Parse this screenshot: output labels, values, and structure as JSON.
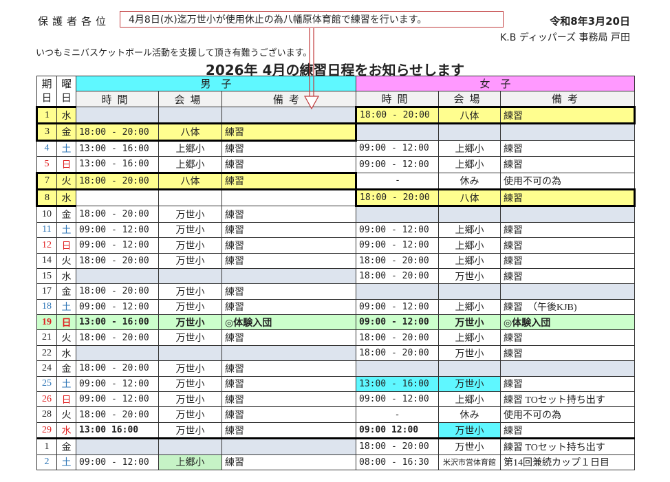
{
  "header": {
    "salutation": "保護者各位",
    "notice": "4月8日(水)迄万世小が使用休止の為八幡原体育館で練習を行います。",
    "date": "令和8年3月20日",
    "org": "K.B ディッパーズ 事務局 戸田",
    "greeting": "いつもミニバスケットボール活動を支援して頂き有難うございます。",
    "title": "2026年 4月の練習日程をお知らせします"
  },
  "table": {
    "col_day": "期日",
    "col_weekday": "曜日",
    "boys": "男　子",
    "girls": "女　子",
    "time": "時間",
    "venue": "会場",
    "note": "備考",
    "rows": [
      {
        "d": "1",
        "w": "水",
        "bt": "",
        "bv": "",
        "bn": "",
        "gt": "18:00 - 20:00",
        "gv": "八体",
        "gn": "練習",
        "style": "yel-girls"
      },
      {
        "d": "3",
        "w": "金",
        "bt": "18:00 - 20:00",
        "bv": "八体",
        "bn": "練習",
        "gt": "",
        "gv": "",
        "gn": "",
        "style": "yel-boys"
      },
      {
        "d": "4",
        "w": "土",
        "bt": "13:00 - 16:00",
        "bv": "上郷小",
        "bn": "練習",
        "gt": "09:00 - 12:00",
        "gv": "上郷小",
        "gn": "練習",
        "color": "blue"
      },
      {
        "d": "5",
        "w": "日",
        "bt": "13:00 - 16:00",
        "bv": "上郷小",
        "bn": "練習",
        "gt": "09:00 - 12:00",
        "gv": "上郷小",
        "gn": "練習",
        "color": "red"
      },
      {
        "d": "7",
        "w": "火",
        "bt": "18:00 - 20:00",
        "bv": "八体",
        "bn": "練習",
        "gt": "-",
        "gv": "休み",
        "gn": " 使用不可の為",
        "style": "yel-boys"
      },
      {
        "d": "8",
        "w": "水",
        "bt": "",
        "bv": "",
        "bn": "",
        "gt": "18:00 - 20:00",
        "gv": "八体",
        "gn": "練習",
        "style": "yel-girls",
        "nogray": true
      },
      {
        "d": "10",
        "w": "金",
        "bt": "18:00 - 20:00",
        "bv": "万世小",
        "bn": "練習",
        "gt": "",
        "gv": "",
        "gn": ""
      },
      {
        "d": "11",
        "w": "土",
        "bt": "09:00 - 12:00",
        "bv": "万世小",
        "bn": "練習",
        "gt": "09:00 - 12:00",
        "gv": "上郷小",
        "gn": "練習",
        "color": "blue"
      },
      {
        "d": "12",
        "w": "日",
        "bt": "09:00 - 12:00",
        "bv": "万世小",
        "bn": "練習",
        "gt": "09:00 - 12:00",
        "gv": "上郷小",
        "gn": "練習",
        "color": "red"
      },
      {
        "d": "14",
        "w": "火",
        "bt": "18:00 - 20:00",
        "bv": "万世小",
        "bn": "練習",
        "gt": "18:00 - 20:00",
        "gv": "上郷小",
        "gn": "練習"
      },
      {
        "d": "15",
        "w": "水",
        "bt": "",
        "bv": "",
        "bn": "",
        "gt": "18:00 - 20:00",
        "gv": "万世小",
        "gn": "練習"
      },
      {
        "d": "17",
        "w": "金",
        "bt": "18:00 - 20:00",
        "bv": "万世小",
        "bn": "練習",
        "gt": "",
        "gv": "",
        "gn": ""
      },
      {
        "d": "18",
        "w": "土",
        "bt": "09:00 - 12:00",
        "bv": "万世小",
        "bn": "練習",
        "gt": "09:00 - 12:00",
        "gv": "上郷小",
        "gn": "練習　（午後KJB)",
        "color": "blue"
      },
      {
        "d": "19",
        "w": "日",
        "bt": "13:00 - 16:00",
        "bv": "万世小",
        "bn": " ◎体験入団",
        "gt": "09:00 - 12:00",
        "gv": "万世小",
        "gn": " ◎体験入団",
        "color": "red",
        "style": "green"
      },
      {
        "d": "21",
        "w": "火",
        "bt": "18:00 - 20:00",
        "bv": "万世小",
        "bn": "練習",
        "gt": "18:00 - 20:00",
        "gv": "上郷小",
        "gn": "練習"
      },
      {
        "d": "22",
        "w": "水",
        "bt": "",
        "bv": "",
        "bn": "",
        "gt": "18:00 - 20:00",
        "gv": "万世小",
        "gn": "練習"
      },
      {
        "d": "24",
        "w": "金",
        "bt": "18:00 - 20:00",
        "bv": "万世小",
        "bn": "練習",
        "gt": "",
        "gv": "",
        "gn": ""
      },
      {
        "d": "25",
        "w": "土",
        "bt": "09:00 - 12:00",
        "bv": "万世小",
        "bn": "練習",
        "gt": "13:00 - 16:00",
        "gv": "万世小",
        "gn": "練習",
        "color": "blue",
        "cyan": [
          "gt",
          "gv"
        ]
      },
      {
        "d": "26",
        "w": "日",
        "bt": "09:00 - 12:00",
        "bv": "万世小",
        "bn": "練習",
        "gt": "09:00 - 12:00",
        "gv": "上郷小",
        "gn": "練習 TOセット持ち出す",
        "color": "red"
      },
      {
        "d": "28",
        "w": "火",
        "bt": "18:00 - 20:00",
        "bv": "万世小",
        "bn": "練習",
        "gt": "-",
        "gv": "休み",
        "gn": " 使用不可の為"
      },
      {
        "d": "29",
        "w": "水",
        "bt": "13:00   16:00",
        "bv": "万世小",
        "bn": "練習",
        "gt": "09:00   12:00",
        "gv": "万世小",
        "gn": "練習",
        "color": "red",
        "boldTime": true,
        "cyan": [
          "gv"
        ],
        "thickBottom": true
      },
      {
        "d": "1",
        "w": "金",
        "bt": "",
        "bv": "",
        "bn": "",
        "gt": "18:00 - 20:00",
        "gv": "万世小",
        "gn": "練習 TOセット持ち出す"
      },
      {
        "d": "2",
        "w": "土",
        "bt": "09:00 - 12:00",
        "bv": "上郷小",
        "bn": "練習",
        "gt": "08:00 - 16:30",
        "gv": "米沢市営体育館",
        "gn": " 第14回兼続カップ１日目",
        "color": "blue",
        "lgreen": [
          "bv"
        ]
      }
    ]
  },
  "colors": {
    "boys_header": "#5ff8ff",
    "girls_header": "#ff99ff",
    "highlight_yellow": "#fffe8f",
    "event_green": "#ccffcc",
    "annotation_red": "#c0393b"
  }
}
